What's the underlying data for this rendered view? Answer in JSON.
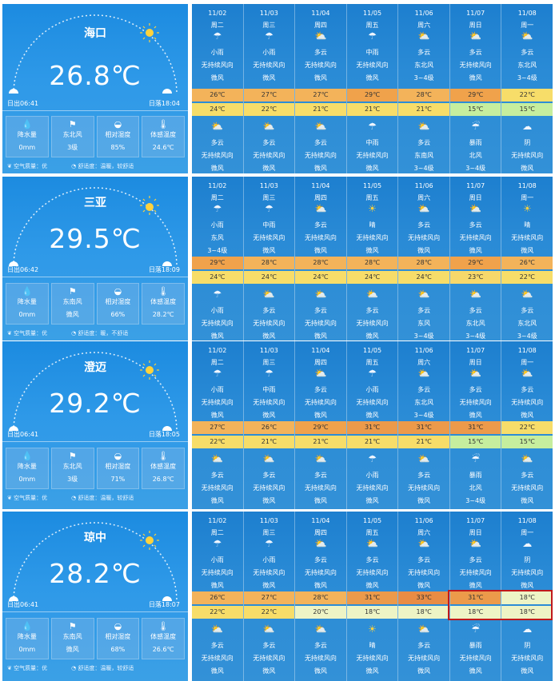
{
  "panels": [
    {
      "city": "海口",
      "temp": "26.8℃",
      "sunrise": "日出06:41",
      "sunset": "日落18:04",
      "stats": [
        {
          "icon": "rain-icon",
          "label": "降水量",
          "value": "0mm"
        },
        {
          "icon": "wind-icon",
          "label": "东北风",
          "value": "3级"
        },
        {
          "icon": "humidity-icon",
          "label": "相对湿度",
          "value": "85%"
        },
        {
          "icon": "thermometer-icon",
          "label": "体感温度",
          "value": "24.6℃"
        }
      ],
      "air": "空气质量：优",
      "comfort": "舒适度：温暖，较舒适",
      "days": [
        {
          "date": "11/02",
          "week": "周二",
          "day_icon": "cloud-rain-icon",
          "day_weather": "小雨",
          "day_wind": "无持续风向",
          "day_level": "微风",
          "high": "26℃",
          "low": "24℃",
          "night_icon": "sun-cloud-icon",
          "night_weather": "多云",
          "night_wind": "无持续风向",
          "night_level": "微风"
        },
        {
          "date": "11/03",
          "week": "周三",
          "day_icon": "cloud-rain-icon",
          "day_weather": "小雨",
          "day_wind": "无持续风向",
          "day_level": "微风",
          "high": "27℃",
          "low": "22℃",
          "night_icon": "sun-cloud-icon",
          "night_weather": "多云",
          "night_wind": "无持续风向",
          "night_level": "微风"
        },
        {
          "date": "11/04",
          "week": "周四",
          "day_icon": "sun-cloud-icon",
          "day_weather": "多云",
          "day_wind": "无持续风向",
          "day_level": "微风",
          "high": "27℃",
          "low": "21℃",
          "night_icon": "sun-cloud-icon",
          "night_weather": "多云",
          "night_wind": "无持续风向",
          "night_level": "微风"
        },
        {
          "date": "11/05",
          "week": "周五",
          "day_icon": "cloud-rain-icon",
          "day_weather": "中雨",
          "day_wind": "无持续风向",
          "day_level": "微风",
          "high": "29℃",
          "low": "21℃",
          "night_icon": "cloud-rain-icon",
          "night_weather": "中雨",
          "night_wind": "无持续风向",
          "night_level": "微风"
        },
        {
          "date": "11/06",
          "week": "周六",
          "day_icon": "sun-cloud-icon",
          "day_weather": "多云",
          "day_wind": "东北风",
          "day_level": "3~4级",
          "high": "28℃",
          "low": "21℃",
          "night_icon": "sun-cloud-icon",
          "night_weather": "多云",
          "night_wind": "东南风",
          "night_level": "3~4级"
        },
        {
          "date": "11/07",
          "week": "周日",
          "day_icon": "sun-cloud-icon",
          "day_weather": "多云",
          "day_wind": "无持续风向",
          "day_level": "微风",
          "high": "29℃",
          "low": "15℃",
          "night_icon": "heavy-rain-icon",
          "night_weather": "暴雨",
          "night_wind": "北风",
          "night_level": "3~4级"
        },
        {
          "date": "11/08",
          "week": "周一",
          "day_icon": "sun-cloud-icon",
          "day_weather": "多云",
          "day_wind": "东北风",
          "day_level": "3~4级",
          "high": "22℃",
          "low": "15℃",
          "night_icon": "cloud-icon",
          "night_weather": "阴",
          "night_wind": "无持续风向",
          "night_level": "微风"
        }
      ]
    },
    {
      "city": "三亚",
      "temp": "29.5℃",
      "sunrise": "日出06:42",
      "sunset": "日落18:09",
      "stats": [
        {
          "icon": "rain-icon",
          "label": "降水量",
          "value": "0mm"
        },
        {
          "icon": "wind-icon",
          "label": "东南风",
          "value": "微风"
        },
        {
          "icon": "humidity-icon",
          "label": "相对湿度",
          "value": "66%"
        },
        {
          "icon": "thermometer-icon",
          "label": "体感温度",
          "value": "28.2℃"
        }
      ],
      "air": "空气质量：优",
      "comfort": "舒适度：暖，不舒适",
      "days": [
        {
          "date": "11/02",
          "week": "周二",
          "day_icon": "cloud-rain-icon",
          "day_weather": "小雨",
          "day_wind": "东风",
          "day_level": "3~4级",
          "high": "29℃",
          "low": "24℃",
          "night_icon": "cloud-rain-icon",
          "night_weather": "小雨",
          "night_wind": "无持续风向",
          "night_level": "微风"
        },
        {
          "date": "11/03",
          "week": "周三",
          "day_icon": "cloud-rain-icon",
          "day_weather": "中雨",
          "day_wind": "无持续风向",
          "day_level": "微风",
          "high": "28℃",
          "low": "24℃",
          "night_icon": "sun-cloud-icon",
          "night_weather": "多云",
          "night_wind": "无持续风向",
          "night_level": "微风"
        },
        {
          "date": "11/04",
          "week": "周四",
          "day_icon": "sun-cloud-icon",
          "day_weather": "多云",
          "day_wind": "无持续风向",
          "day_level": "微风",
          "high": "28℃",
          "low": "24℃",
          "night_icon": "sun-cloud-icon",
          "night_weather": "多云",
          "night_wind": "无持续风向",
          "night_level": "微风"
        },
        {
          "date": "11/05",
          "week": "周五",
          "day_icon": "sun-icon",
          "day_weather": "晴",
          "day_wind": "无持续风向",
          "day_level": "微风",
          "high": "28℃",
          "low": "24℃",
          "night_icon": "sun-cloud-icon",
          "night_weather": "多云",
          "night_wind": "无持续风向",
          "night_level": "微风"
        },
        {
          "date": "11/06",
          "week": "周六",
          "day_icon": "sun-cloud-icon",
          "day_weather": "多云",
          "day_wind": "无持续风向",
          "day_level": "微风",
          "high": "28℃",
          "low": "24℃",
          "night_icon": "sun-cloud-icon",
          "night_weather": "多云",
          "night_wind": "东风",
          "night_level": "3~4级"
        },
        {
          "date": "11/07",
          "week": "周日",
          "day_icon": "sun-cloud-icon",
          "day_weather": "多云",
          "day_wind": "无持续风向",
          "day_level": "微风",
          "high": "29℃",
          "low": "23℃",
          "night_icon": "sun-cloud-icon",
          "night_weather": "多云",
          "night_wind": "东北风",
          "night_level": "3~4级"
        },
        {
          "date": "11/08",
          "week": "周一",
          "day_icon": "sun-icon",
          "day_weather": "晴",
          "day_wind": "无持续风向",
          "day_level": "微风",
          "high": "26℃",
          "low": "22℃",
          "night_icon": "sun-cloud-icon",
          "night_weather": "多云",
          "night_wind": "东北风",
          "night_level": "3~4级"
        }
      ]
    },
    {
      "city": "澄迈",
      "temp": "29.2℃",
      "sunrise": "日出06:41",
      "sunset": "日落18:05",
      "stats": [
        {
          "icon": "rain-icon",
          "label": "降水量",
          "value": "0mm"
        },
        {
          "icon": "wind-icon",
          "label": "东北风",
          "value": "3级"
        },
        {
          "icon": "humidity-icon",
          "label": "相对湿度",
          "value": "71%"
        },
        {
          "icon": "thermometer-icon",
          "label": "体感温度",
          "value": "26.8℃"
        }
      ],
      "air": "空气质量：优",
      "comfort": "舒适度：温暖，较舒适",
      "days": [
        {
          "date": "11/02",
          "week": "周二",
          "day_icon": "cloud-rain-icon",
          "day_weather": "小雨",
          "day_wind": "无持续风向",
          "day_level": "微风",
          "high": "27℃",
          "low": "22℃",
          "night_icon": "sun-cloud-icon",
          "night_weather": "多云",
          "night_wind": "无持续风向",
          "night_level": "微风"
        },
        {
          "date": "11/03",
          "week": "周三",
          "day_icon": "cloud-rain-icon",
          "day_weather": "中雨",
          "day_wind": "无持续风向",
          "day_level": "微风",
          "high": "26℃",
          "low": "21℃",
          "night_icon": "sun-cloud-icon",
          "night_weather": "多云",
          "night_wind": "无持续风向",
          "night_level": "微风"
        },
        {
          "date": "11/04",
          "week": "周四",
          "day_icon": "sun-cloud-icon",
          "day_weather": "多云",
          "day_wind": "无持续风向",
          "day_level": "微风",
          "high": "29℃",
          "low": "21℃",
          "night_icon": "sun-cloud-icon",
          "night_weather": "多云",
          "night_wind": "无持续风向",
          "night_level": "微风"
        },
        {
          "date": "11/05",
          "week": "周五",
          "day_icon": "cloud-rain-icon",
          "day_weather": "小雨",
          "day_wind": "无持续风向",
          "day_level": "微风",
          "high": "31℃",
          "low": "21℃",
          "night_icon": "cloud-rain-icon",
          "night_weather": "小雨",
          "night_wind": "无持续风向",
          "night_level": "微风"
        },
        {
          "date": "11/06",
          "week": "周六",
          "day_icon": "sun-cloud-icon",
          "day_weather": "多云",
          "day_wind": "东北风",
          "day_level": "3~4级",
          "high": "31℃",
          "low": "21℃",
          "night_icon": "sun-cloud-icon",
          "night_weather": "多云",
          "night_wind": "无持续风向",
          "night_level": "微风"
        },
        {
          "date": "11/07",
          "week": "周日",
          "day_icon": "sun-cloud-icon",
          "day_weather": "多云",
          "day_wind": "无持续风向",
          "day_level": "微风",
          "high": "31℃",
          "low": "15℃",
          "night_icon": "heavy-rain-icon",
          "night_weather": "暴雨",
          "night_wind": "北风",
          "night_level": "3~4级"
        },
        {
          "date": "11/08",
          "week": "周一",
          "day_icon": "sun-cloud-icon",
          "day_weather": "多云",
          "day_wind": "无持续风向",
          "day_level": "微风",
          "high": "22℃",
          "low": "15℃",
          "night_icon": "sun-cloud-icon",
          "night_weather": "多云",
          "night_wind": "无持续风向",
          "night_level": "微风"
        }
      ]
    },
    {
      "city": "琼中",
      "temp": "28.2℃",
      "sunrise": "日出06:41",
      "sunset": "日落18:07",
      "stats": [
        {
          "icon": "rain-icon",
          "label": "降水量",
          "value": "0mm"
        },
        {
          "icon": "wind-icon",
          "label": "东南风",
          "value": "微风"
        },
        {
          "icon": "humidity-icon",
          "label": "相对湿度",
          "value": "68%"
        },
        {
          "icon": "thermometer-icon",
          "label": "体感温度",
          "value": "26.6℃"
        }
      ],
      "air": "空气质量：优",
      "comfort": "舒适度：温暖，较舒适",
      "days": [
        {
          "date": "11/02",
          "week": "周二",
          "day_icon": "cloud-rain-icon",
          "day_weather": "小雨",
          "day_wind": "无持续风向",
          "day_level": "微风",
          "high": "26℃",
          "low": "22℃",
          "night_icon": "sun-cloud-icon",
          "night_weather": "多云",
          "night_wind": "无持续风向",
          "night_level": "微风"
        },
        {
          "date": "11/03",
          "week": "周三",
          "day_icon": "cloud-rain-icon",
          "day_weather": "小雨",
          "day_wind": "无持续风向",
          "day_level": "微风",
          "high": "27℃",
          "low": "22℃",
          "night_icon": "sun-cloud-icon",
          "night_weather": "多云",
          "night_wind": "无持续风向",
          "night_level": "微风"
        },
        {
          "date": "11/04",
          "week": "周四",
          "day_icon": "sun-cloud-icon",
          "day_weather": "多云",
          "day_wind": "无持续风向",
          "day_level": "微风",
          "high": "28℃",
          "low": "20℃",
          "night_icon": "sun-cloud-icon",
          "night_weather": "多云",
          "night_wind": "无持续风向",
          "night_level": "微风"
        },
        {
          "date": "11/05",
          "week": "周五",
          "day_icon": "sun-cloud-icon",
          "day_weather": "多云",
          "day_wind": "无持续风向",
          "day_level": "微风",
          "high": "31℃",
          "low": "18℃",
          "night_icon": "sun-icon",
          "night_weather": "晴",
          "night_wind": "无持续风向",
          "night_level": "微风"
        },
        {
          "date": "11/06",
          "week": "周六",
          "day_icon": "sun-cloud-icon",
          "day_weather": "多云",
          "day_wind": "无持续风向",
          "day_level": "微风",
          "high": "33℃",
          "low": "18℃",
          "night_icon": "sun-cloud-icon",
          "night_weather": "多云",
          "night_wind": "无持续风向",
          "night_level": "微风"
        },
        {
          "date": "11/07",
          "week": "周日",
          "day_icon": "sun-cloud-icon",
          "day_weather": "多云",
          "day_wind": "无持续风向",
          "day_level": "微风",
          "high": "31℃",
          "low": "18℃",
          "night_icon": "heavy-rain-icon",
          "night_weather": "暴雨",
          "night_wind": "无持续风向",
          "night_level": "微风"
        },
        {
          "date": "11/08",
          "week": "周一",
          "day_icon": "cloud-icon",
          "day_weather": "阴",
          "day_wind": "无持续风向",
          "day_level": "微风",
          "high": "18℃",
          "low": "18℃",
          "night_icon": "cloud-icon",
          "night_weather": "阴",
          "night_wind": "无持续风向",
          "night_level": "微风"
        }
      ]
    }
  ]
}
